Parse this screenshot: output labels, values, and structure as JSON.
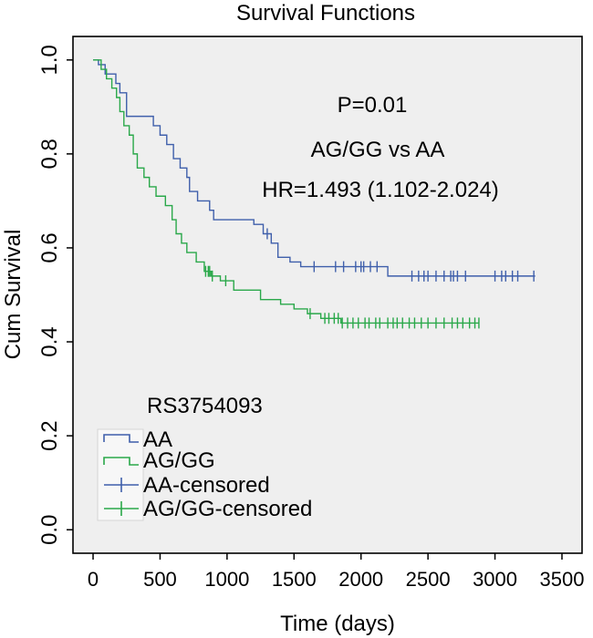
{
  "chart_data": {
    "type": "line",
    "title": "Survival Functions",
    "xlabel": "Time (days)",
    "ylabel": "Cum Survival",
    "xlim": [
      -150,
      3650
    ],
    "ylim": [
      -0.05,
      1.05
    ],
    "xticks": [
      0,
      500,
      1000,
      1500,
      2000,
      2500,
      3000,
      3500
    ],
    "yticks": [
      0.0,
      0.2,
      0.4,
      0.6,
      0.8,
      1.0
    ],
    "ytick_labels": [
      "0.0",
      "0.2",
      "0.4",
      "0.6",
      "0.8",
      "1.0"
    ],
    "grid": false,
    "annotations": [
      "P=0.01",
      "AG/GG vs AA",
      "HR=1.493 (1.102-2.024)"
    ],
    "legend": {
      "title": "RS3754093",
      "placement": "bottom-left",
      "entries": [
        "AA",
        "AG/GG",
        "AA-censored",
        "AG/GG-censored"
      ]
    },
    "series": [
      {
        "name": "AA",
        "color": "#3f5fab",
        "steps": [
          [
            0,
            1.0
          ],
          [
            40,
            0.99
          ],
          [
            90,
            0.97
          ],
          [
            170,
            0.95
          ],
          [
            200,
            0.93
          ],
          [
            250,
            0.88
          ],
          [
            450,
            0.86
          ],
          [
            500,
            0.84
          ],
          [
            550,
            0.82
          ],
          [
            600,
            0.79
          ],
          [
            650,
            0.77
          ],
          [
            700,
            0.75
          ],
          [
            720,
            0.72
          ],
          [
            780,
            0.7
          ],
          [
            870,
            0.68
          ],
          [
            900,
            0.66
          ],
          [
            1200,
            0.65
          ],
          [
            1270,
            0.63
          ],
          [
            1330,
            0.61
          ],
          [
            1380,
            0.58
          ],
          [
            1470,
            0.57
          ],
          [
            1550,
            0.56
          ],
          [
            2200,
            0.54
          ],
          [
            3300,
            0.54
          ]
        ],
        "censored": [
          1300,
          1650,
          1810,
          1870,
          1960,
          2000,
          2020,
          2070,
          2120,
          2380,
          2430,
          2470,
          2500,
          2560,
          2620,
          2670,
          2690,
          2720,
          2780,
          3000,
          3050,
          3080,
          3130,
          3170,
          3290
        ]
      },
      {
        "name": "AG/GG",
        "color": "#2aa84a",
        "steps": [
          [
            0,
            1.0
          ],
          [
            60,
            0.98
          ],
          [
            100,
            0.96
          ],
          [
            140,
            0.94
          ],
          [
            175,
            0.92
          ],
          [
            200,
            0.89
          ],
          [
            230,
            0.86
          ],
          [
            270,
            0.84
          ],
          [
            300,
            0.8
          ],
          [
            330,
            0.77
          ],
          [
            380,
            0.75
          ],
          [
            420,
            0.73
          ],
          [
            470,
            0.71
          ],
          [
            540,
            0.69
          ],
          [
            590,
            0.66
          ],
          [
            620,
            0.63
          ],
          [
            660,
            0.61
          ],
          [
            700,
            0.59
          ],
          [
            770,
            0.57
          ],
          [
            830,
            0.55
          ],
          [
            880,
            0.54
          ],
          [
            950,
            0.53
          ],
          [
            1050,
            0.51
          ],
          [
            1250,
            0.49
          ],
          [
            1400,
            0.48
          ],
          [
            1500,
            0.47
          ],
          [
            1600,
            0.46
          ],
          [
            1700,
            0.45
          ],
          [
            1850,
            0.44
          ],
          [
            2880,
            0.44
          ]
        ],
        "censored": [
          840,
          860,
          870,
          890,
          990,
          1620,
          1730,
          1760,
          1800,
          1830,
          1860,
          1900,
          1940,
          1980,
          2030,
          2060,
          2110,
          2140,
          2200,
          2240,
          2270,
          2310,
          2360,
          2400,
          2450,
          2500,
          2560,
          2620,
          2680,
          2720,
          2760,
          2810,
          2850,
          2880
        ]
      }
    ]
  }
}
